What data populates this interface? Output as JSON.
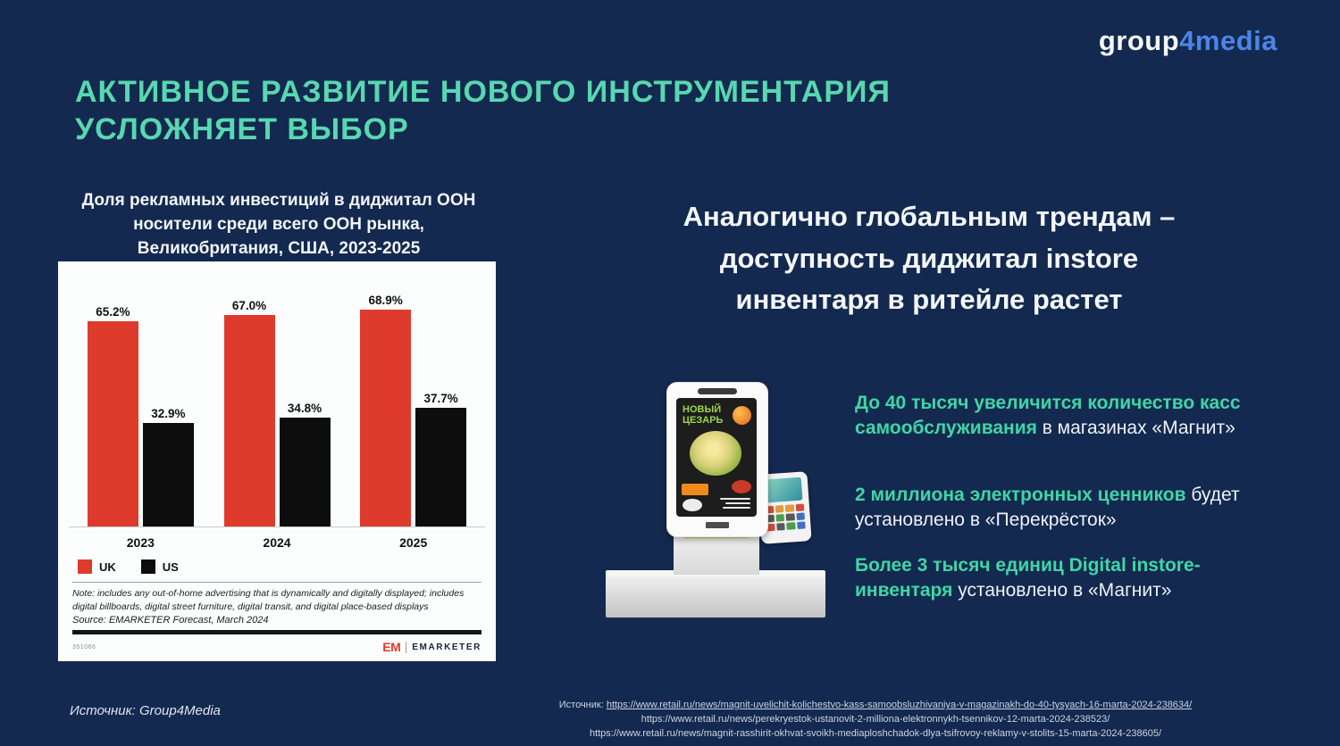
{
  "logo": {
    "group": "group",
    "four": "4",
    "media": "media"
  },
  "title": {
    "line1": "АКТИВНОЕ РАЗВИТИЕ НОВОГО ИНСТРУМЕНТАРИЯ",
    "line2": "УСЛОЖНЯЕТ ВЫБОР"
  },
  "chart_card": {
    "title": "Доля рекламных инвестиций в диджитал ООН носители среди всего ООН рынка, Великобритания, США, 2023-2025",
    "note": "Note: includes any out-of-home advertising that is dynamically and digitally displayed; includes digital billboards, digital street furniture, digital transit, and digital place-based displays",
    "source": "Source: EMARKETER Forecast, March 2024",
    "chart_id": "351066",
    "brand_mark": "EM",
    "brand_name": "EMARKETER"
  },
  "chart_data": {
    "type": "bar",
    "title": "Доля рекламных инвестиций в диджитал ООН носители среди всего ООН рынка, Великобритания, США, 2023-2025",
    "categories": [
      "2023",
      "2024",
      "2025"
    ],
    "series": [
      {
        "name": "UK",
        "color": "#df3b2c",
        "values": [
          65.2,
          67.0,
          68.9
        ]
      },
      {
        "name": "US",
        "color": "#0d0d0d",
        "values": [
          32.9,
          34.8,
          37.7
        ]
      }
    ],
    "value_suffix": "%",
    "xlabel": "",
    "ylabel": "",
    "ylim": [
      0,
      75
    ],
    "grid": false,
    "legend_position": "bottom-left"
  },
  "right": {
    "heading_lines": [
      "Аналогично глобальным трендам –",
      "доступность диджитал instore",
      "инвентаря в ритейле растет"
    ],
    "bullets": [
      {
        "highlight": "До 40 тысяч увеличится количество касс самообслуживания",
        "rest": " в магазинах «Магнит»"
      },
      {
        "highlight": "2 миллиона электронных ценников",
        "rest": " будет установлено в «Перекрёсток»"
      },
      {
        "highlight": "Более 3 тысяч единиц Digital instore-инвентаря",
        "rest": " установлено в «Магнит»"
      }
    ]
  },
  "kiosk": {
    "screen_title": "НОВЫЙ ЦЕЗАРЬ"
  },
  "footer": {
    "left_source": "Источник: Group4Media",
    "right_label": "Источник:",
    "links": [
      "https://www.retail.ru/news/magnit-uvelichit-kolichestvo-kass-samoobsluzhivaniya-v-magazinakh-do-40-tysyach-16-marta-2024-238634/",
      "https://www.retail.ru/news/perekryestok-ustanovit-2-milliona-elektronnykh-tsennikov-12-marta-2024-238523/",
      "https://www.retail.ru/news/magnit-rasshirit-okhvat-svoikh-mediaploshchadok-dlya-tsifrovoy-reklamy-v-stolits-15-marta-2024-238605/"
    ]
  },
  "colors": {
    "background": "#14294f",
    "accent_green": "#3ed6a7",
    "title_teal": "#57d8b0",
    "bar_uk_red": "#df3b2c",
    "bar_us_black": "#0d0d0d",
    "logo_blue": "#4a86e8"
  }
}
